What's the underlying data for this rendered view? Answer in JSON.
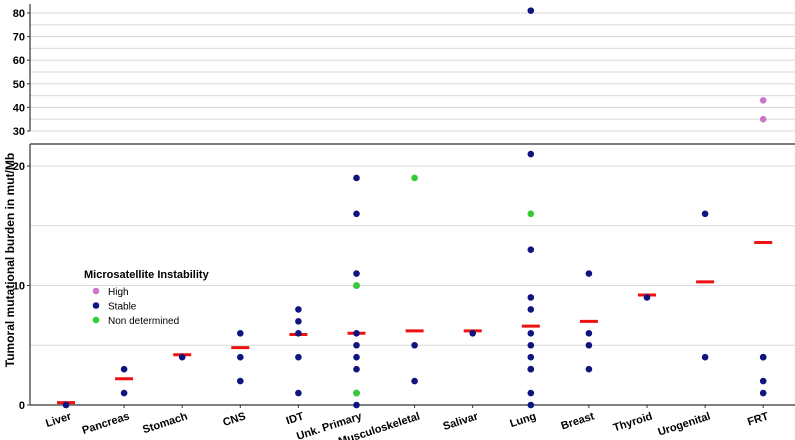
{
  "chart_data": {
    "type": "scatter",
    "ylabel": "Tumoral mutational burden in mut/Mb",
    "xlabel": "",
    "categories": [
      "Liver",
      "Pancreas",
      "Stomach",
      "CNS",
      "IDT",
      "Unk. Primary",
      "Musculoskeletal",
      "Salivar",
      "Lung",
      "Breast",
      "Thyroid",
      "Urogenital",
      "FRT"
    ],
    "y_axis": {
      "broken": true,
      "lower_range": [
        0,
        22
      ],
      "upper_range": [
        30,
        85
      ],
      "lower_ticks": [
        0,
        10,
        20
      ],
      "upper_ticks": [
        30,
        40,
        50,
        60,
        70,
        80
      ],
      "lower_gridlines": [
        5,
        15
      ],
      "upper_gridlines": [
        35,
        45,
        55,
        65,
        75
      ]
    },
    "legend": {
      "title": "Microsatellite Instability",
      "placement": "left-middle",
      "entries": [
        {
          "label": "High",
          "color": "#cc77cc"
        },
        {
          "label": "Stable",
          "color": "#0f1580"
        },
        {
          "label": "Non determined",
          "color": "#33cc33"
        }
      ]
    },
    "median_color": "#ee1111",
    "medians": [
      0.2,
      2.2,
      4.2,
      4.8,
      5.9,
      6.0,
      6.2,
      6.2,
      6.6,
      7.0,
      9.2,
      10.3,
      13.6
    ],
    "series": [
      {
        "name": "High",
        "points": [
          {
            "category": "FRT",
            "y": 43
          },
          {
            "category": "FRT",
            "y": 35
          }
        ]
      },
      {
        "name": "Stable",
        "points": [
          {
            "category": "Liver",
            "y": 0
          },
          {
            "category": "Pancreas",
            "y": 3
          },
          {
            "category": "Pancreas",
            "y": 1
          },
          {
            "category": "Stomach",
            "y": 4
          },
          {
            "category": "CNS",
            "y": 6
          },
          {
            "category": "CNS",
            "y": 4
          },
          {
            "category": "CNS",
            "y": 2
          },
          {
            "category": "IDT",
            "y": 8
          },
          {
            "category": "IDT",
            "y": 7
          },
          {
            "category": "IDT",
            "y": 6
          },
          {
            "category": "IDT",
            "y": 4
          },
          {
            "category": "IDT",
            "y": 1
          },
          {
            "category": "Unk. Primary",
            "y": 19
          },
          {
            "category": "Unk. Primary",
            "y": 16
          },
          {
            "category": "Unk. Primary",
            "y": 11
          },
          {
            "category": "Unk. Primary",
            "y": 10
          },
          {
            "category": "Unk. Primary",
            "y": 6
          },
          {
            "category": "Unk. Primary",
            "y": 5
          },
          {
            "category": "Unk. Primary",
            "y": 4
          },
          {
            "category": "Unk. Primary",
            "y": 3
          },
          {
            "category": "Unk. Primary",
            "y": 1
          },
          {
            "category": "Unk. Primary",
            "y": 0
          },
          {
            "category": "Musculoskeletal",
            "y": 5
          },
          {
            "category": "Musculoskeletal",
            "y": 2
          },
          {
            "category": "Salivar",
            "y": 6
          },
          {
            "category": "Lung",
            "y": 81
          },
          {
            "category": "Lung",
            "y": 21
          },
          {
            "category": "Lung",
            "y": 13
          },
          {
            "category": "Lung",
            "y": 9
          },
          {
            "category": "Lung",
            "y": 8
          },
          {
            "category": "Lung",
            "y": 6
          },
          {
            "category": "Lung",
            "y": 5
          },
          {
            "category": "Lung",
            "y": 4
          },
          {
            "category": "Lung",
            "y": 3
          },
          {
            "category": "Lung",
            "y": 3
          },
          {
            "category": "Lung",
            "y": 1
          },
          {
            "category": "Lung",
            "y": 0
          },
          {
            "category": "Breast",
            "y": 11
          },
          {
            "category": "Breast",
            "y": 6
          },
          {
            "category": "Breast",
            "y": 5
          },
          {
            "category": "Breast",
            "y": 3
          },
          {
            "category": "Thyroid",
            "y": 9
          },
          {
            "category": "Urogenital",
            "y": 16
          },
          {
            "category": "Urogenital",
            "y": 4
          },
          {
            "category": "FRT",
            "y": 4
          },
          {
            "category": "FRT",
            "y": 4
          },
          {
            "category": "FRT",
            "y": 2
          },
          {
            "category": "FRT",
            "y": 1
          }
        ]
      },
      {
        "name": "Non determined",
        "points": [
          {
            "category": "Unk. Primary",
            "y": 10
          },
          {
            "category": "Unk. Primary",
            "y": 1
          },
          {
            "category": "Musculoskeletal",
            "y": 19
          },
          {
            "category": "Lung",
            "y": 16
          }
        ]
      }
    ]
  }
}
